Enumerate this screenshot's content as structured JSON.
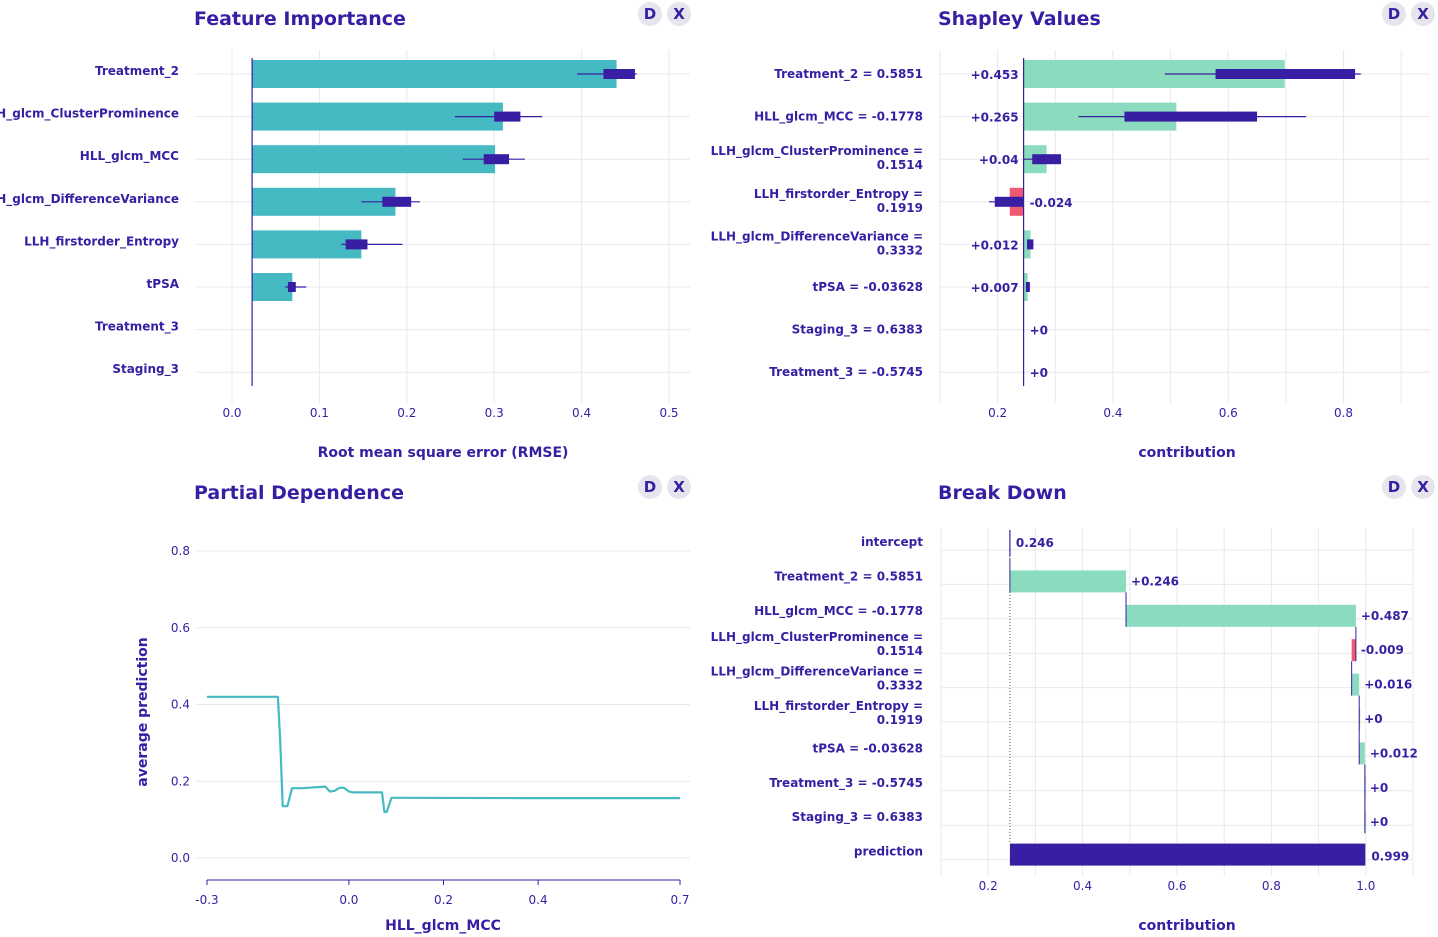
{
  "buttons": {
    "d": "D",
    "x": "X"
  },
  "chart_data": [
    {
      "id": "fi",
      "type": "bar",
      "title": "Feature Importance",
      "xlabel": "Root mean square error (RMSE)",
      "xlim": [
        0.0,
        0.5
      ],
      "xticks": [
        "0.0",
        "0.1",
        "0.2",
        "0.3",
        "0.4",
        "0.5"
      ],
      "baseline": 0.023,
      "categories": [
        "Treatment_2",
        "LLH_glcm_ClusterProminence",
        "HLL_glcm_MCC",
        "LLH_glcm_DifferenceVariance",
        "LLH_firstorder_Entropy",
        "tPSA",
        "Treatment_3",
        "Staging_3"
      ],
      "values": [
        0.44,
        0.31,
        0.301,
        0.187,
        0.148,
        0.069,
        0.023,
        0.023
      ],
      "boxes": [
        [
          0.425,
          0.461
        ],
        [
          0.3,
          0.33
        ],
        [
          0.288,
          0.317
        ],
        [
          0.172,
          0.205
        ],
        [
          0.13,
          0.155
        ],
        [
          0.064,
          0.073
        ],
        null,
        null
      ],
      "whiskers": [
        [
          0.395,
          0.463
        ],
        [
          0.255,
          0.355
        ],
        [
          0.264,
          0.335
        ],
        [
          0.148,
          0.215
        ],
        [
          0.125,
          0.195
        ],
        [
          0.061,
          0.085
        ],
        null,
        null
      ],
      "color": "#46bac2",
      "box_color": "#371ea3"
    },
    {
      "id": "sv",
      "type": "bar",
      "title": "Shapley Values",
      "xlabel": "contribution",
      "xlim": [
        0.1,
        0.95
      ],
      "xticks": [
        "0.2",
        "0.4",
        "0.6",
        "0.8"
      ],
      "baseline": 0.245,
      "categories": [
        "Treatment_2 = 0.5851",
        "HLL_glcm_MCC = -0.1778",
        "LLH_glcm_ClusterProminence = 0.1514",
        "LLH_firstorder_Entropy = 0.1919",
        "LLH_glcm_DifferenceVariance = 0.3332",
        "tPSA = -0.03628",
        "Staging_3 = 0.6383",
        "Treatment_3 = -0.5745"
      ],
      "values": [
        0.453,
        0.265,
        0.04,
        -0.024,
        0.012,
        0.007,
        0,
        0
      ],
      "value_labels": [
        "+0.453",
        "+0.265",
        "+0.04",
        "-0.024",
        "+0.012",
        "+0.007",
        "+0",
        "+0"
      ],
      "boxes": [
        [
          0.578,
          0.82
        ],
        [
          0.42,
          0.65
        ],
        [
          0.26,
          0.31
        ],
        [
          0.195,
          0.245
        ],
        [
          0.251,
          0.262
        ],
        [
          0.249,
          0.255
        ],
        null,
        null
      ],
      "whiskers": [
        [
          0.49,
          0.83
        ],
        [
          0.34,
          0.735
        ],
        [
          0.245,
          0.31
        ],
        [
          0.185,
          0.245
        ],
        [
          0.251,
          0.262
        ],
        [
          0.249,
          0.255
        ],
        null,
        null
      ],
      "pos_color": "#8bdcbe",
      "neg_color": "#f05a71",
      "box_color": "#371ea3"
    },
    {
      "id": "pd",
      "type": "line",
      "title": "Partial Dependence",
      "xlabel": "HLL_glcm_MCC",
      "ylabel": "average prediction",
      "xlim": [
        -0.3,
        0.7
      ],
      "ylim": [
        0.0,
        0.8
      ],
      "xticks": [
        "-0.3",
        "0.0",
        "0.2",
        "0.4",
        "0.7"
      ],
      "yticks": [
        "0.0",
        "0.2",
        "0.4",
        "0.6",
        "0.8"
      ],
      "x": [
        -0.3,
        -0.15,
        -0.145,
        -0.14,
        -0.13,
        -0.12,
        -0.1,
        -0.05,
        -0.04,
        -0.03,
        -0.02,
        -0.01,
        0.0,
        0.01,
        0.02,
        0.07,
        0.075,
        0.08,
        0.09,
        0.1,
        0.38,
        0.7
      ],
      "y": [
        0.42,
        0.42,
        0.3,
        0.135,
        0.135,
        0.182,
        0.182,
        0.186,
        0.173,
        0.175,
        0.183,
        0.183,
        0.173,
        0.171,
        0.171,
        0.171,
        0.12,
        0.12,
        0.157,
        0.157,
        0.156,
        0.156
      ],
      "color": "#46bac2"
    },
    {
      "id": "bd",
      "type": "bar",
      "title": "Break Down",
      "xlabel": "contribution",
      "xlim": [
        0.1,
        1.1
      ],
      "xticks": [
        "0.2",
        "0.4",
        "0.6",
        "0.8",
        "1.0"
      ],
      "categories": [
        "intercept",
        "Treatment_2 = 0.5851",
        "HLL_glcm_MCC = -0.1778",
        "LLH_glcm_ClusterProminence = 0.1514",
        "LLH_glcm_DifferenceVariance = 0.3332",
        "LLH_firstorder_Entropy = 0.1919",
        "tPSA = -0.03628",
        "Treatment_3 = -0.5745",
        "Staging_3 = 0.6383",
        "prediction"
      ],
      "values": [
        0.246,
        0.246,
        0.487,
        -0.009,
        0.016,
        0,
        0.012,
        0,
        0,
        0.999
      ],
      "value_labels": [
        "0.246",
        "+0.246",
        "+0.487",
        "-0.009",
        "+0.016",
        "+0",
        "+0.012",
        "+0",
        "+0",
        "0.999"
      ],
      "pos_color": "#8bdcbe",
      "neg_color": "#f05a71",
      "pred_color": "#371ea3"
    }
  ]
}
